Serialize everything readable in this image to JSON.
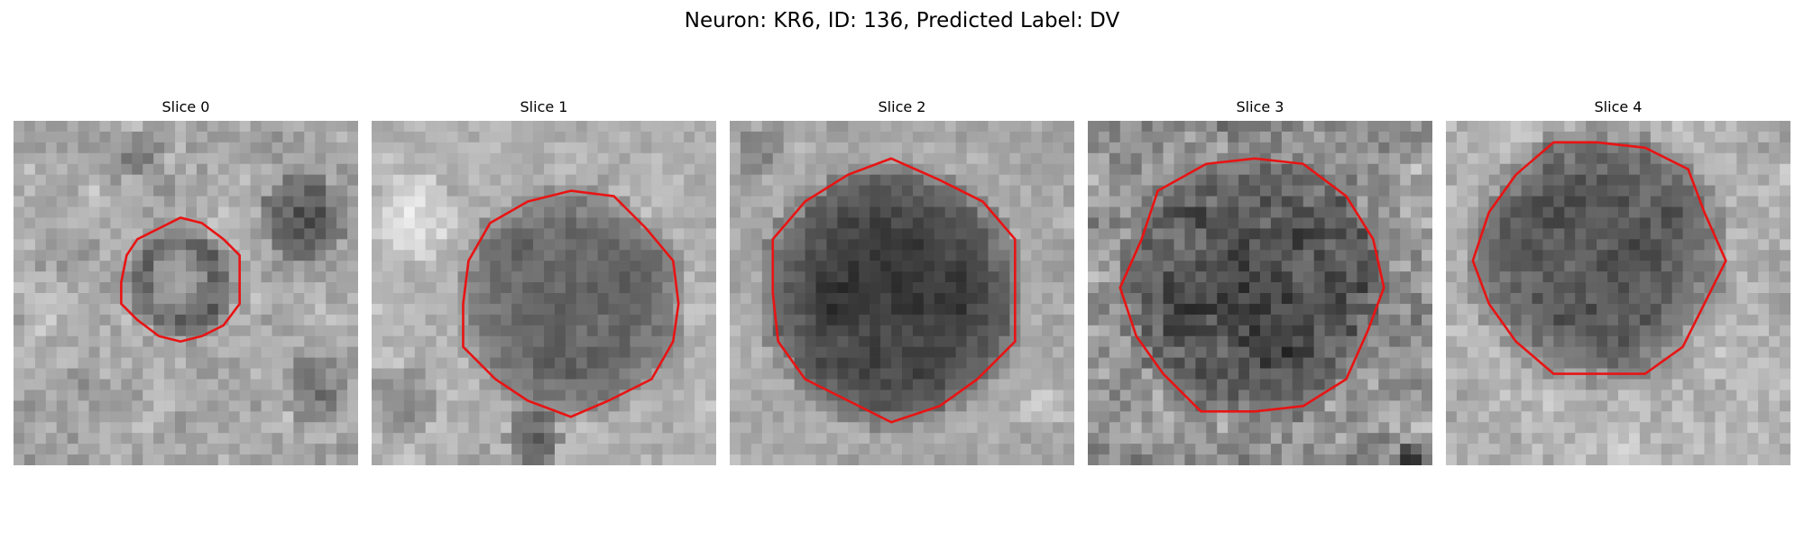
{
  "figure": {
    "title": "Neuron: KR6, ID: 136, Predicted Label: DV",
    "contour_color": "#e81414",
    "colormap": "grayscale",
    "panels": [
      {
        "title": "Slice 0"
      },
      {
        "title": "Slice 1"
      },
      {
        "title": "Slice 2"
      },
      {
        "title": "Slice 3"
      },
      {
        "title": "Slice 4"
      }
    ]
  }
}
